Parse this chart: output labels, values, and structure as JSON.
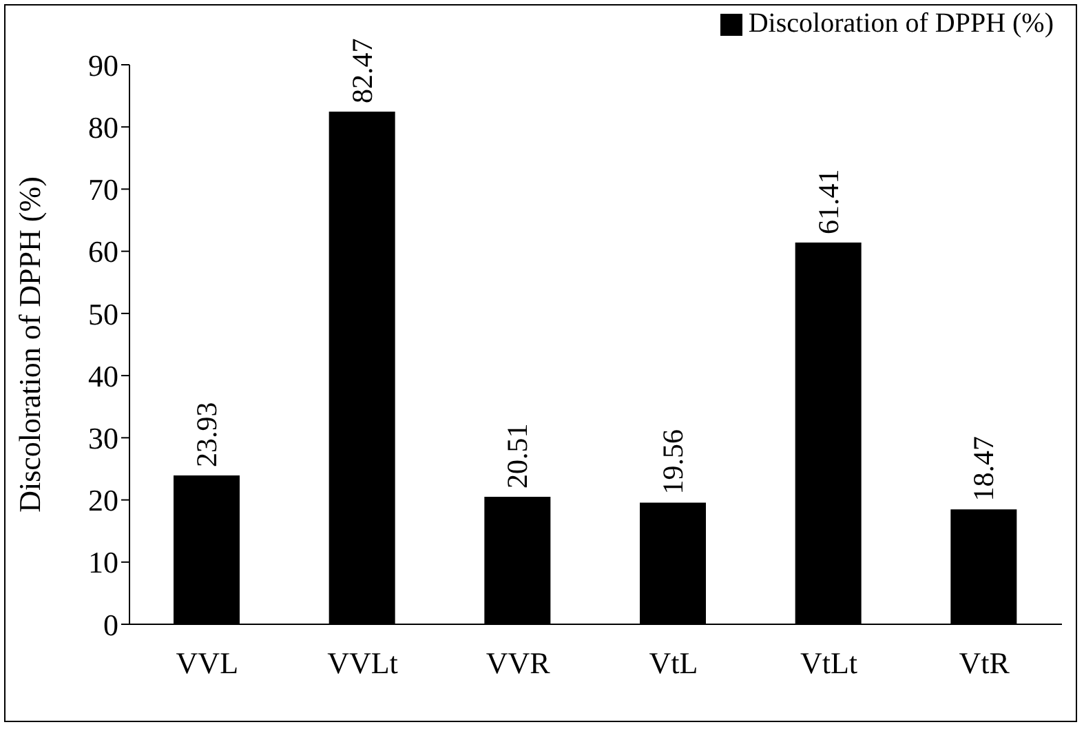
{
  "chart_data": {
    "type": "bar",
    "ylabel": "Discoloration of DPPH (%)",
    "categories": [
      "VVL",
      "VVLt",
      "VVR",
      "VtL",
      "VtLt",
      "VtR"
    ],
    "series": [
      {
        "name": "Discoloration of DPPH (%)",
        "color": "#000000",
        "values": [
          23.93,
          82.47,
          20.51,
          19.56,
          61.41,
          18.47
        ]
      }
    ],
    "ylim": [
      0,
      90
    ],
    "yticks": [
      0,
      10,
      20,
      30,
      40,
      50,
      60,
      70,
      80,
      90
    ],
    "data_labels": true,
    "grid": false,
    "legend": "top right"
  }
}
